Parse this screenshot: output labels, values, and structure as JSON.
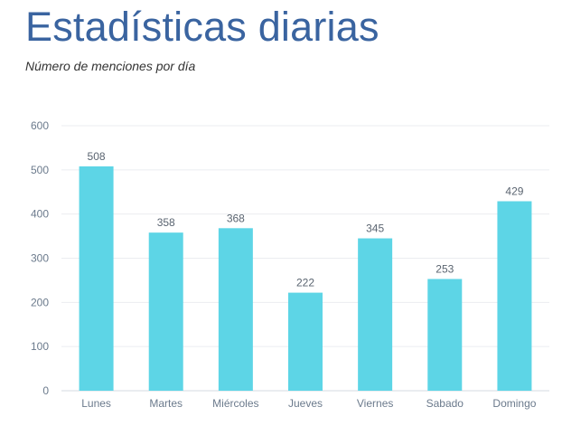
{
  "header": {
    "title": "Estadísticas diarias",
    "subtitle": "Número de menciones por día"
  },
  "chart_data": {
    "type": "bar",
    "title": "Estadísticas diarias",
    "subtitle": "Número de menciones por día",
    "xlabel": "",
    "ylabel": "",
    "categories": [
      "Lunes",
      "Martes",
      "Miércoles",
      "Jueves",
      "Viernes",
      "Sabado",
      "Domingo"
    ],
    "values": [
      508,
      358,
      368,
      222,
      345,
      253,
      429
    ],
    "ylim": [
      0,
      600
    ],
    "yticks": [
      0,
      100,
      200,
      300,
      400,
      500,
      600
    ],
    "grid": true,
    "legend": "none",
    "data_labels": true,
    "colors": {
      "bar": "#5dd5e6",
      "grid": "#ebedf0",
      "axis": "#d6dbe1"
    }
  }
}
